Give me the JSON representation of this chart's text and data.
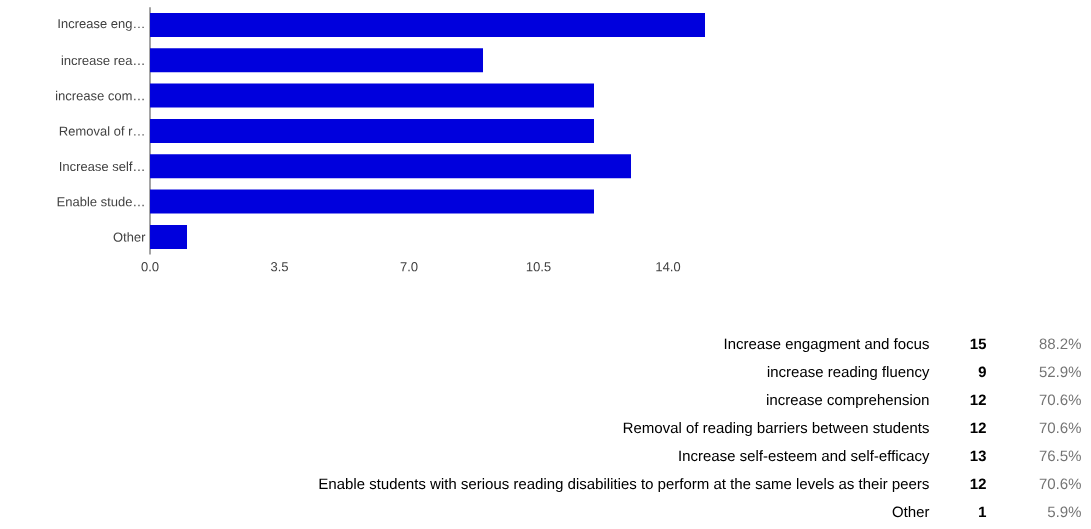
{
  "chart_data": [
    {
      "type": "bar",
      "orientation": "horizontal",
      "categories": [
        "Increase eng…",
        "increase rea…",
        "increase com…",
        "Removal of r…",
        "Increase self…",
        "Enable stude…",
        "Other"
      ],
      "values": [
        15,
        9,
        12,
        12,
        13,
        12,
        1
      ],
      "color": "#0000dd",
      "xlim": [
        0,
        15
      ],
      "xticks": [
        {
          "value": 0,
          "label": "0.0"
        },
        {
          "value": 3.5,
          "label": "3.5"
        },
        {
          "value": 7,
          "label": "7.0"
        },
        {
          "value": 10.5,
          "label": "10.5"
        },
        {
          "value": 14,
          "label": "14.0"
        }
      ]
    },
    {
      "type": "other",
      "categories": [
        "Increase engagment and focus",
        "increase reading fluency",
        "increase comprehension",
        "Removal of reading barriers between students",
        "Increase self-esteem and self-efficacy",
        "Enable students with serious reading disabilities to perform at the same levels as their peers",
        "Other"
      ],
      "values": [
        15,
        9,
        12,
        12,
        13,
        12,
        1
      ],
      "data_labels": true,
      "annotations": [
        "88.2%",
        "52.9%",
        "70.6%",
        "70.6%",
        "76.5%",
        "70.6%",
        "5.9%"
      ]
    }
  ]
}
